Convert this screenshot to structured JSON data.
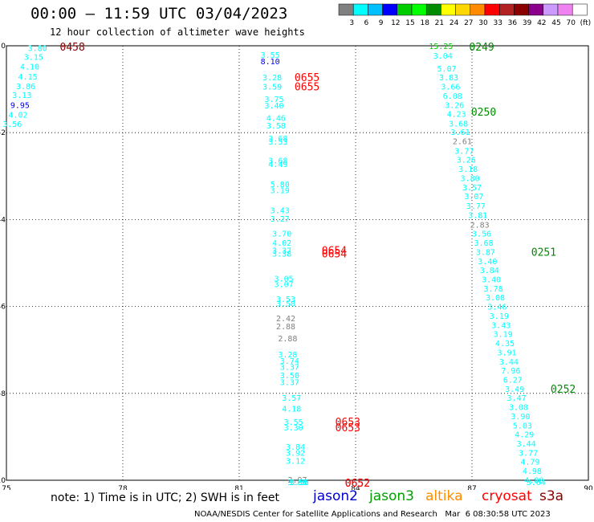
{
  "header": {
    "title": "00:00 – 11:59 UTC 03/04/2023",
    "subtitle": "12 hour collection of altimeter wave heights"
  },
  "legend_scale": {
    "colors": [
      "#808080",
      "#00ffff",
      "#00bfff",
      "#0000ff",
      "#00cd00",
      "#00ff00",
      "#008b00",
      "#ffff00",
      "#ffd700",
      "#ff8c00",
      "#ff0000",
      "#b22222",
      "#8b0000",
      "#8b008b",
      "#cc99ff",
      "#ee82ee",
      "#ffffff"
    ],
    "labels": [
      "3",
      "6",
      "9",
      "12",
      "15",
      "18",
      "21",
      "24",
      "27",
      "30",
      "33",
      "36",
      "39",
      "42",
      "45",
      "70",
      "(ft)"
    ]
  },
  "chart_data": {
    "type": "scatter",
    "title": "00:00 – 11:59 UTC 03/04/2023",
    "xlim": [
      75,
      90
    ],
    "ylim": [
      -10,
      0
    ],
    "xticks": [
      "75",
      "78",
      "81",
      "84",
      "87",
      "90"
    ],
    "yticks": [
      "0",
      "-2",
      "-4",
      "-6",
      "-8",
      "-10"
    ],
    "grid": true,
    "points": [
      {
        "x": 75.8,
        "y": -0.05,
        "v": "3.80",
        "c": "#00ffff"
      },
      {
        "x": 75.7,
        "y": -0.25,
        "v": "3.15",
        "c": "#00ffff"
      },
      {
        "x": 75.6,
        "y": -0.47,
        "v": "4.10",
        "c": "#00ffff"
      },
      {
        "x": 75.55,
        "y": -0.7,
        "v": "4.15",
        "c": "#00ffff"
      },
      {
        "x": 75.5,
        "y": -0.92,
        "v": "3.86",
        "c": "#00ffff"
      },
      {
        "x": 75.4,
        "y": -1.13,
        "v": "3.13",
        "c": "#00ffff"
      },
      {
        "x": 75.35,
        "y": -1.36,
        "v": "9.95",
        "c": "#0000ff"
      },
      {
        "x": 75.3,
        "y": -1.58,
        "v": "4.02",
        "c": "#00ffff"
      },
      {
        "x": 75.15,
        "y": -1.79,
        "v": "3.56",
        "c": "#00ffff"
      },
      {
        "x": 81.8,
        "y": -0.2,
        "v": "3.55",
        "c": "#00ffff"
      },
      {
        "x": 81.8,
        "y": -0.35,
        "v": "8.10",
        "c": "#0000ff"
      },
      {
        "x": 81.85,
        "y": -0.72,
        "v": "3.28",
        "c": "#00ffff"
      },
      {
        "x": 81.85,
        "y": -0.93,
        "v": "3.59",
        "c": "#00ffff"
      },
      {
        "x": 81.9,
        "y": -1.22,
        "v": "3.75",
        "c": "#00ffff"
      },
      {
        "x": 81.9,
        "y": -1.37,
        "v": "3.40",
        "c": "#00ffff"
      },
      {
        "x": 81.95,
        "y": -1.65,
        "v": "4.46",
        "c": "#00ffff"
      },
      {
        "x": 81.95,
        "y": -1.83,
        "v": "3.58",
        "c": "#00ffff"
      },
      {
        "x": 82.0,
        "y": -2.13,
        "v": "3.68",
        "c": "#00ffff"
      },
      {
        "x": 82.0,
        "y": -2.2,
        "v": "3.53",
        "c": "#00ffff"
      },
      {
        "x": 82.0,
        "y": -2.63,
        "v": "3.68",
        "c": "#00ffff"
      },
      {
        "x": 82.0,
        "y": -2.72,
        "v": "4.49",
        "c": "#00ffff"
      },
      {
        "x": 82.05,
        "y": -3.18,
        "v": "5.80",
        "c": "#00ffff"
      },
      {
        "x": 82.05,
        "y": -3.32,
        "v": "3.19",
        "c": "#00ffff"
      },
      {
        "x": 82.05,
        "y": -3.78,
        "v": "3.43",
        "c": "#00ffff"
      },
      {
        "x": 82.05,
        "y": -3.97,
        "v": "3.27",
        "c": "#00ffff"
      },
      {
        "x": 82.1,
        "y": -4.32,
        "v": "3.70",
        "c": "#00ffff"
      },
      {
        "x": 82.1,
        "y": -4.53,
        "v": "4.02",
        "c": "#00ffff"
      },
      {
        "x": 82.1,
        "y": -4.7,
        "v": "3.37",
        "c": "#00ffff"
      },
      {
        "x": 82.1,
        "y": -4.78,
        "v": "3.38",
        "c": "#00ffff"
      },
      {
        "x": 82.15,
        "y": -5.35,
        "v": "3.05",
        "c": "#00ffff"
      },
      {
        "x": 82.15,
        "y": -5.48,
        "v": "3.07",
        "c": "#00ffff"
      },
      {
        "x": 82.2,
        "y": -5.82,
        "v": "3.53",
        "c": "#00ffff"
      },
      {
        "x": 82.2,
        "y": -5.92,
        "v": "3.58",
        "c": "#00ffff"
      },
      {
        "x": 82.2,
        "y": -6.27,
        "v": "2.42",
        "c": "#808080"
      },
      {
        "x": 82.2,
        "y": -6.45,
        "v": "2.88",
        "c": "#808080"
      },
      {
        "x": 82.25,
        "y": -6.73,
        "v": "2.88",
        "c": "#808080"
      },
      {
        "x": 82.25,
        "y": -7.1,
        "v": "3.28",
        "c": "#00ffff"
      },
      {
        "x": 82.3,
        "y": -7.25,
        "v": "3.74",
        "c": "#00ffff"
      },
      {
        "x": 82.3,
        "y": -7.38,
        "v": "3.37",
        "c": "#00ffff"
      },
      {
        "x": 82.3,
        "y": -7.58,
        "v": "3.50",
        "c": "#00ffff"
      },
      {
        "x": 82.3,
        "y": -7.74,
        "v": "3.37",
        "c": "#00ffff"
      },
      {
        "x": 82.35,
        "y": -8.1,
        "v": "3.57",
        "c": "#00ffff"
      },
      {
        "x": 82.35,
        "y": -8.35,
        "v": "4.18",
        "c": "#00ffff"
      },
      {
        "x": 82.4,
        "y": -8.65,
        "v": "3.55",
        "c": "#00ffff"
      },
      {
        "x": 82.4,
        "y": -8.78,
        "v": "3.30",
        "c": "#00ffff"
      },
      {
        "x": 82.45,
        "y": -9.22,
        "v": "3.84",
        "c": "#00ffff"
      },
      {
        "x": 82.45,
        "y": -9.36,
        "v": "3.92",
        "c": "#00ffff"
      },
      {
        "x": 82.45,
        "y": -9.55,
        "v": "3.12",
        "c": "#00ffff"
      },
      {
        "x": 82.5,
        "y": -9.98,
        "v": "2.97",
        "c": "#808080"
      },
      {
        "x": 82.5,
        "y": -10.14,
        "v": "3.68",
        "c": "#00ffff"
      },
      {
        "x": 82.5,
        "y": -10.3,
        "v": "3.64",
        "c": "#00ffff"
      },
      {
        "x": 82.55,
        "y": -10.75,
        "v": "3.55",
        "c": "#00ffff"
      },
      {
        "x": 82.55,
        "y": -10.82,
        "v": "3.55",
        "c": "#00ffff"
      },
      {
        "x": 86.2,
        "y": 0.0,
        "v": "15.25",
        "c": "#00cd00"
      },
      {
        "x": 86.25,
        "y": -0.22,
        "v": "3.04",
        "c": "#00ffff"
      },
      {
        "x": 86.35,
        "y": -0.52,
        "v": "5.07",
        "c": "#00ffff"
      },
      {
        "x": 86.4,
        "y": -0.72,
        "v": "3.83",
        "c": "#00ffff"
      },
      {
        "x": 86.45,
        "y": -0.93,
        "v": "3.66",
        "c": "#00ffff"
      },
      {
        "x": 86.5,
        "y": -1.15,
        "v": "6.08",
        "c": "#00ffff"
      },
      {
        "x": 86.55,
        "y": -1.36,
        "v": "3.26",
        "c": "#00ffff"
      },
      {
        "x": 86.6,
        "y": -1.56,
        "v": "4.23",
        "c": "#00ffff"
      },
      {
        "x": 86.65,
        "y": -1.78,
        "v": "3.68",
        "c": "#00ffff"
      },
      {
        "x": 86.7,
        "y": -1.98,
        "v": "3.61",
        "c": "#00ffff"
      },
      {
        "x": 86.75,
        "y": -2.19,
        "v": "2.61",
        "c": "#808080"
      },
      {
        "x": 86.8,
        "y": -2.41,
        "v": "3.77",
        "c": "#00ffff"
      },
      {
        "x": 86.85,
        "y": -2.62,
        "v": "3.26",
        "c": "#00ffff"
      },
      {
        "x": 86.9,
        "y": -2.83,
        "v": "3.18",
        "c": "#00ffff"
      },
      {
        "x": 86.95,
        "y": -3.04,
        "v": "3.80",
        "c": "#00ffff"
      },
      {
        "x": 87.0,
        "y": -3.25,
        "v": "3.57",
        "c": "#00ffff"
      },
      {
        "x": 87.05,
        "y": -3.46,
        "v": "3.07",
        "c": "#00ffff"
      },
      {
        "x": 87.1,
        "y": -3.68,
        "v": "3.77",
        "c": "#00ffff"
      },
      {
        "x": 87.15,
        "y": -3.89,
        "v": "3.81",
        "c": "#00ffff"
      },
      {
        "x": 87.2,
        "y": -4.11,
        "v": "2.83",
        "c": "#808080"
      },
      {
        "x": 87.25,
        "y": -4.32,
        "v": "3.56",
        "c": "#00ffff"
      },
      {
        "x": 87.3,
        "y": -4.53,
        "v": "3.68",
        "c": "#00ffff"
      },
      {
        "x": 87.35,
        "y": -4.74,
        "v": "3.87",
        "c": "#00ffff"
      },
      {
        "x": 87.4,
        "y": -4.95,
        "v": "3.40",
        "c": "#00ffff"
      },
      {
        "x": 87.45,
        "y": -5.16,
        "v": "3.84",
        "c": "#00ffff"
      },
      {
        "x": 87.5,
        "y": -5.37,
        "v": "3.40",
        "c": "#00ffff"
      },
      {
        "x": 87.55,
        "y": -5.58,
        "v": "3.78",
        "c": "#00ffff"
      },
      {
        "x": 87.6,
        "y": -5.79,
        "v": "3.08",
        "c": "#00ffff"
      },
      {
        "x": 87.65,
        "y": -6.0,
        "v": "3.46",
        "c": "#00ffff"
      },
      {
        "x": 87.7,
        "y": -6.21,
        "v": "3.19",
        "c": "#00ffff"
      },
      {
        "x": 87.75,
        "y": -6.42,
        "v": "3.43",
        "c": "#00ffff"
      },
      {
        "x": 87.8,
        "y": -6.63,
        "v": "3.19",
        "c": "#00ffff"
      },
      {
        "x": 87.85,
        "y": -6.84,
        "v": "4.35",
        "c": "#00ffff"
      },
      {
        "x": 87.9,
        "y": -7.05,
        "v": "3.91",
        "c": "#00ffff"
      },
      {
        "x": 87.95,
        "y": -7.26,
        "v": "3.44",
        "c": "#00ffff"
      },
      {
        "x": 88.0,
        "y": -7.47,
        "v": "7.96",
        "c": "#00ffff"
      },
      {
        "x": 88.05,
        "y": -7.68,
        "v": "6.27",
        "c": "#00ffff"
      },
      {
        "x": 88.1,
        "y": -7.89,
        "v": "3.49",
        "c": "#00ffff"
      },
      {
        "x": 88.15,
        "y": -8.1,
        "v": "3.47",
        "c": "#00ffff"
      },
      {
        "x": 88.2,
        "y": -8.31,
        "v": "3.08",
        "c": "#00ffff"
      },
      {
        "x": 88.25,
        "y": -8.52,
        "v": "3.90",
        "c": "#00ffff"
      },
      {
        "x": 88.3,
        "y": -8.73,
        "v": "5.03",
        "c": "#00ffff"
      },
      {
        "x": 88.35,
        "y": -8.94,
        "v": "4.29",
        "c": "#00ffff"
      },
      {
        "x": 88.4,
        "y": -9.15,
        "v": "3.44",
        "c": "#00ffff"
      },
      {
        "x": 88.45,
        "y": -9.36,
        "v": "3.77",
        "c": "#00ffff"
      },
      {
        "x": 88.5,
        "y": -9.57,
        "v": "4.79",
        "c": "#00ffff"
      },
      {
        "x": 88.55,
        "y": -9.78,
        "v": "4.98",
        "c": "#00ffff"
      },
      {
        "x": 88.6,
        "y": -9.99,
        "v": "4.80",
        "c": "#00ffff"
      },
      {
        "x": 88.65,
        "y": -10.2,
        "v": "3.64",
        "c": "#00ffff"
      }
    ],
    "time_labels": [
      {
        "x": 76.7,
        "y": -0.02,
        "t": "0458",
        "c": "#8b0000"
      },
      {
        "x": 82.75,
        "y": -0.72,
        "t": "0655",
        "c": "#ff0000"
      },
      {
        "x": 82.75,
        "y": -0.93,
        "t": "0655",
        "c": "#ff0000"
      },
      {
        "x": 83.45,
        "y": -4.7,
        "t": "0654",
        "c": "#ff0000"
      },
      {
        "x": 83.45,
        "y": -4.78,
        "t": "0654",
        "c": "#ff0000"
      },
      {
        "x": 83.8,
        "y": -8.65,
        "t": "0653",
        "c": "#ff0000"
      },
      {
        "x": 83.8,
        "y": -8.78,
        "t": "0653",
        "c": "#ff0000"
      },
      {
        "x": 84.05,
        "y": -10.75,
        "t": "0652",
        "c": "#ff0000"
      },
      {
        "x": 84.05,
        "y": -10.82,
        "t": "0652",
        "c": "#ff0000"
      },
      {
        "x": 87.25,
        "y": -0.02,
        "t": "0249",
        "c": "#008b00"
      },
      {
        "x": 87.3,
        "y": -1.52,
        "t": "0250",
        "c": "#008b00"
      },
      {
        "x": 88.85,
        "y": -4.74,
        "t": "0251",
        "c": "#008b00"
      },
      {
        "x": 89.35,
        "y": -7.89,
        "t": "0252",
        "c": "#008b00"
      }
    ]
  },
  "footer": {
    "note": "note: 1) Time is in UTC; 2) SWH is in feet",
    "satellites": [
      {
        "name": "jason2",
        "color": "#0000cd"
      },
      {
        "name": "jason3",
        "color": "#00a000"
      },
      {
        "name": "altika",
        "color": "#ff8c00"
      },
      {
        "name": "cryosat",
        "color": "#ff0000"
      },
      {
        "name": "s3a",
        "color": "#8b0000"
      }
    ],
    "credit": "NOAA/NESDIS Center for Satellite Applications and Research   Mar  6 08:30:58 UTC 2023"
  }
}
